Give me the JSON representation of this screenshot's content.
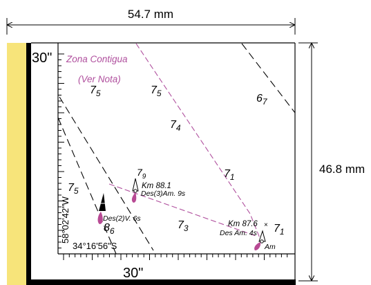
{
  "dimensions": {
    "width_label": "54.7 mm",
    "height_label": "46.8 mm"
  },
  "labels": {
    "top_seconds": "30\"",
    "bottom_seconds": "30\"",
    "longitude": "58°02'42\"W",
    "latitude": "34°16'56\"S",
    "zone_line1": "Zona Contigua",
    "zone_line2": "(Ver Nota)"
  },
  "depths": [
    {
      "main": "7",
      "sub": "5"
    },
    {
      "main": "7",
      "sub": "5"
    },
    {
      "main": "6",
      "sub": "7"
    },
    {
      "main": "7",
      "sub": "4"
    },
    {
      "main": "7",
      "sub": "9"
    },
    {
      "main": "7",
      "sub": "1"
    },
    {
      "main": "7",
      "sub": "5"
    },
    {
      "main": "8",
      "sub": "6"
    },
    {
      "main": "7",
      "sub": "3"
    },
    {
      "main": "7",
      "sub": "1"
    }
  ],
  "aids": {
    "km881_name": "Km 88.1",
    "km881_light": "Des(3)Am. 9s",
    "des2_light": "Des(2)V. 6s",
    "km876_name": "Km 87.6",
    "km876_light": "Des Am. 4s",
    "am_label": "Am"
  },
  "colors": {
    "magenta": "#b0509e",
    "magenta_fill": "#b84a94",
    "yellow_band": "#f7e47a",
    "black": "#000000"
  }
}
